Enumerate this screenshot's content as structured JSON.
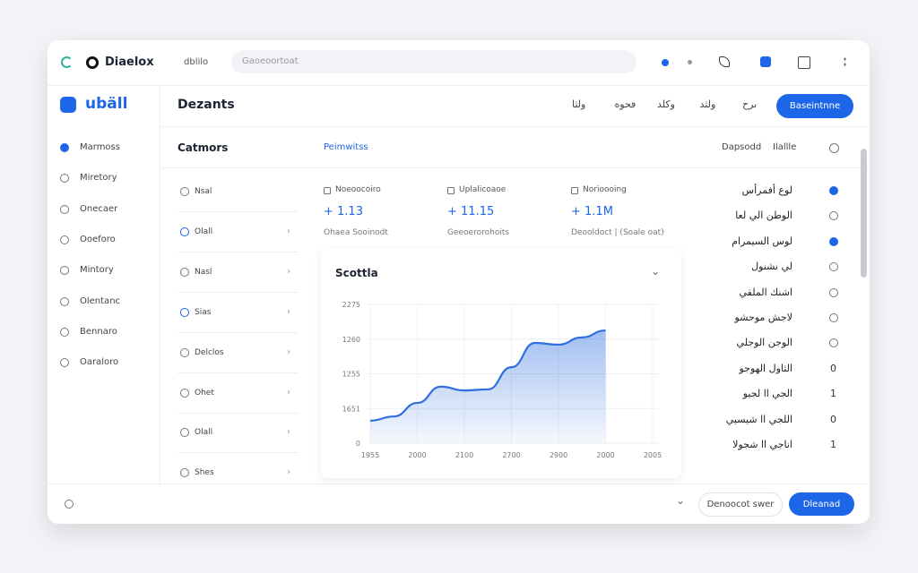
{
  "topbar": {
    "brand": "Diaelox",
    "link": "dblilo",
    "search": "Gaoeoortoat"
  },
  "sidebar": {
    "logo": "ubäll",
    "items": [
      "Marmoss",
      "Miretory",
      "Onecaer",
      "Ooeforo",
      "Mintory",
      "Olentanc",
      "Bennaro",
      "Oaraloro"
    ]
  },
  "header": {
    "title": "Dezants",
    "tabs": [
      "ولثا",
      "ٯحوه",
      "وكلد",
      "ولثد",
      "ٮرح"
    ],
    "button": "Baseintnne"
  },
  "subheader": {
    "left": "Catmors",
    "active": "Peimwitss",
    "right1": "Dapsodd",
    "right2": "Ilallle"
  },
  "list": [
    "Nsal",
    "Olall",
    "Nasl",
    "Sias",
    "Delclos",
    "Ohet",
    "Olall",
    "Shes"
  ],
  "stats": [
    {
      "label": "Noeoocoiro",
      "value": "+ 1.13",
      "sub": "Ohaea Sooinodt"
    },
    {
      "label": "Uplalicoaoe",
      "value": "+ 11.15",
      "sub": "Geeoerorohoits"
    },
    {
      "label": "Norioooing",
      "value": "+ 1.1M",
      "sub": "Deooldoct | (Soale oat)"
    }
  ],
  "chart_data": {
    "type": "area",
    "title": "Scottla",
    "color": "#2f6fe0",
    "x": [
      0,
      0.5,
      1,
      1.5,
      2,
      2.5,
      3,
      3.5,
      4,
      4.5,
      5
    ],
    "values": [
      0.65,
      0.77,
      1.16,
      1.63,
      1.52,
      1.55,
      2.19,
      2.89,
      2.84,
      3.05,
      3.25
    ],
    "xlim": [
      0,
      6
    ],
    "xticks": [
      {
        "value": 0,
        "label": "1955"
      },
      {
        "value": 1,
        "label": "2000"
      },
      {
        "value": 2,
        "label": "2100"
      },
      {
        "value": 3,
        "label": "2700"
      },
      {
        "value": 4,
        "label": "2900"
      },
      {
        "value": 5,
        "label": "2000"
      },
      {
        "value": 6,
        "label": "2005"
      }
    ],
    "ylim": [
      0,
      4
    ],
    "yticks": [
      0,
      {
        "value": 1,
        "label": "1651"
      },
      {
        "value": 2,
        "label": "1255"
      },
      {
        "value": 3,
        "label": "1260"
      },
      {
        "value": 4,
        "label": "2275"
      }
    ],
    "grid": true
  },
  "right_list": [
    {
      "label": "لوع أفمرأس"
    },
    {
      "label": "الوطن الي لعا"
    },
    {
      "label": "لوس السيمرام"
    },
    {
      "label": "لي نشنول"
    },
    {
      "label": "اشنك الملقي"
    },
    {
      "label": "لاجش موحشو"
    },
    {
      "label": "الوجن الوجلي"
    },
    {
      "label": "الثاول الهوجو",
      "mark": "0"
    },
    {
      "label": "الجي اا لجيو",
      "mark": "1"
    },
    {
      "label": "اللجي اا شيسيي",
      "mark": "0"
    },
    {
      "label": "اناجي اا شجولا",
      "mark": "1"
    }
  ],
  "footer": {
    "secondary": "Denoocot swer",
    "primary": "Dleanad"
  }
}
